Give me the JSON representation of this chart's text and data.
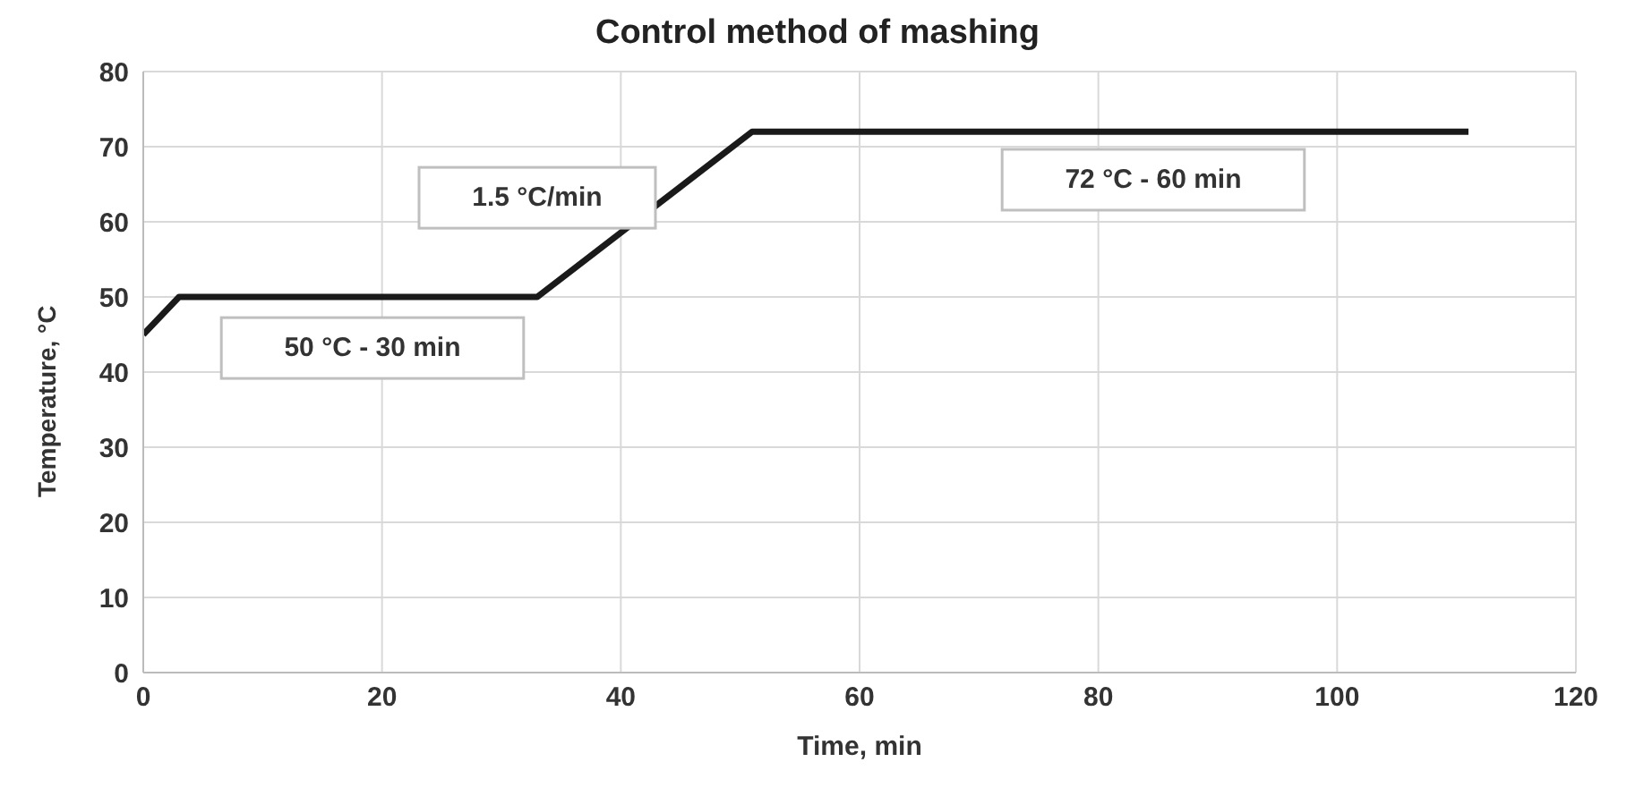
{
  "chart_data": {
    "type": "line",
    "title": "Control method of mashing",
    "xlabel": "Time, min",
    "ylabel": "Temperature, °C",
    "x": [
      0,
      3,
      33,
      51,
      111
    ],
    "series": [
      {
        "color": "#1a1a1a",
        "values": [
          45,
          50,
          50,
          72,
          72
        ]
      }
    ],
    "xlim": [
      0,
      120
    ],
    "xticks": [
      0,
      20,
      40,
      60,
      80,
      100,
      120
    ],
    "ylim": [
      0,
      80
    ],
    "yticks": [
      0,
      10,
      20,
      30,
      40,
      50,
      60,
      70,
      80
    ],
    "grid": true,
    "legend": false,
    "marker": "none",
    "line_style": "solid",
    "annotations": [
      "50 °C - 30 min",
      "1.5 °C/min",
      "72 °C - 60 min"
    ]
  }
}
